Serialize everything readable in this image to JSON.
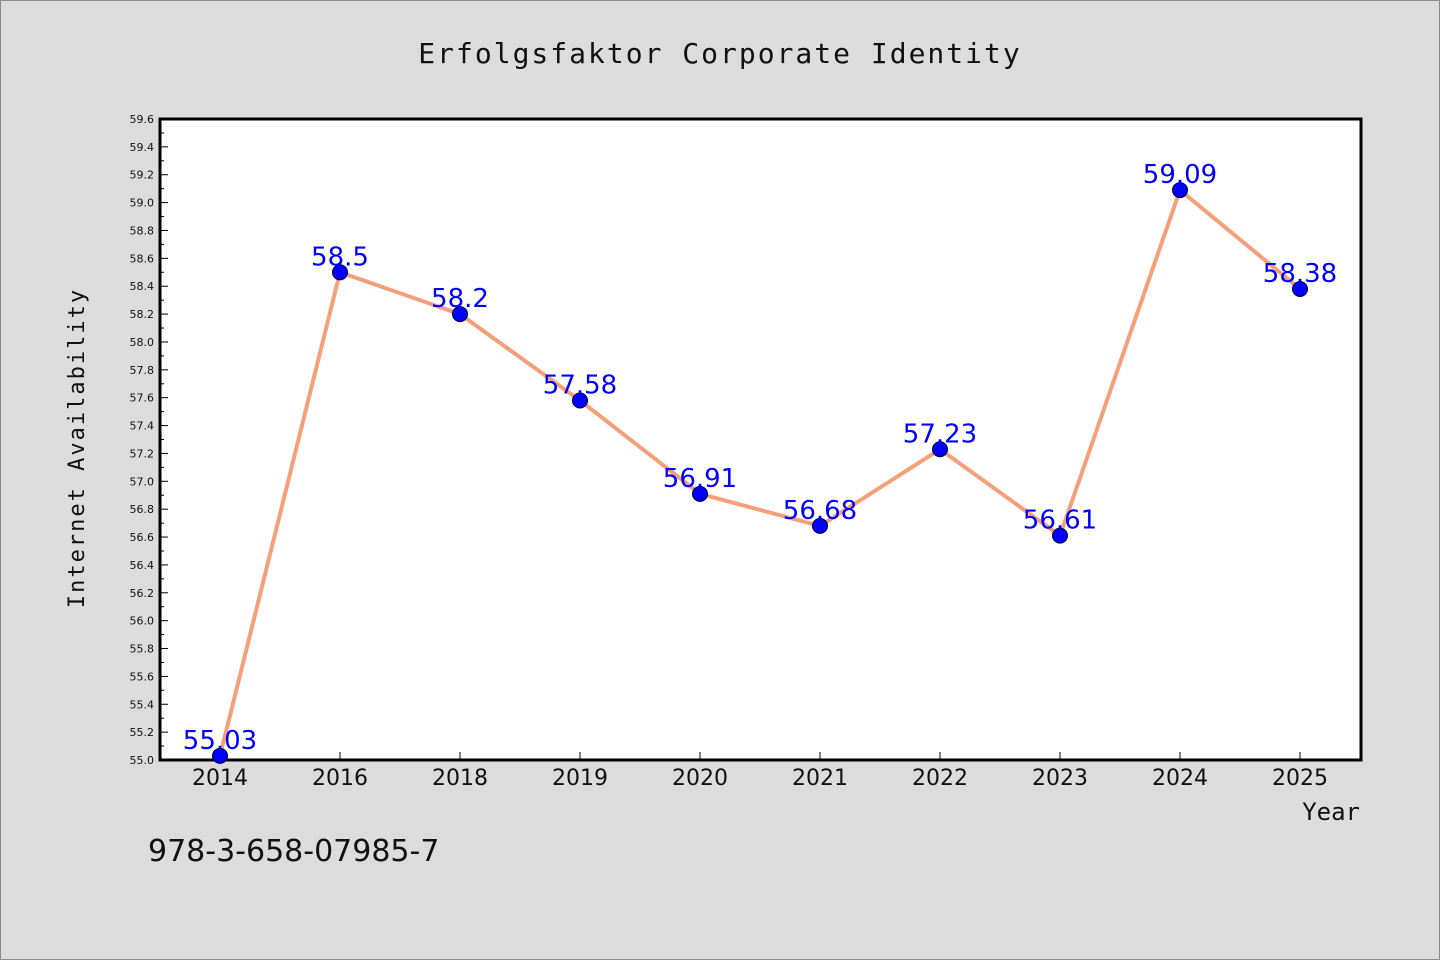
{
  "chart_data": {
    "type": "line",
    "title": "Erfolgsfaktor Corporate Identity",
    "xlabel": "Year",
    "ylabel": "Internet Availability",
    "categories": [
      "2014",
      "2016",
      "2018",
      "2019",
      "2020",
      "2021",
      "2022",
      "2023",
      "2024",
      "2025"
    ],
    "values": [
      55.03,
      58.5,
      58.2,
      57.58,
      56.91,
      56.68,
      57.23,
      56.61,
      59.09,
      58.38
    ],
    "data_labels": [
      "55.03",
      "58.5",
      "58.2",
      "57.58",
      "56.91",
      "56.68",
      "57.23",
      "56.61",
      "59.09",
      "58.38"
    ],
    "ylim": [
      55.0,
      59.6
    ],
    "yticks": [
      "55.0",
      "55.2",
      "55.4",
      "55.6",
      "55.8",
      "56.0",
      "56.2",
      "56.4",
      "56.6",
      "56.8",
      "57.0",
      "57.2",
      "57.4",
      "57.6",
      "57.8",
      "58.0",
      "58.2",
      "58.4",
      "58.6",
      "58.8",
      "59.0",
      "59.2",
      "59.4",
      "59.6"
    ],
    "grid": false,
    "line_color": "#f4a07a",
    "marker_color": "#0000ff",
    "label_color": "#0000ff",
    "plot_background": "#ffffff",
    "figure_background": "#dcdcdc"
  },
  "footer": {
    "isbn": "978-3-658-07985-7"
  }
}
